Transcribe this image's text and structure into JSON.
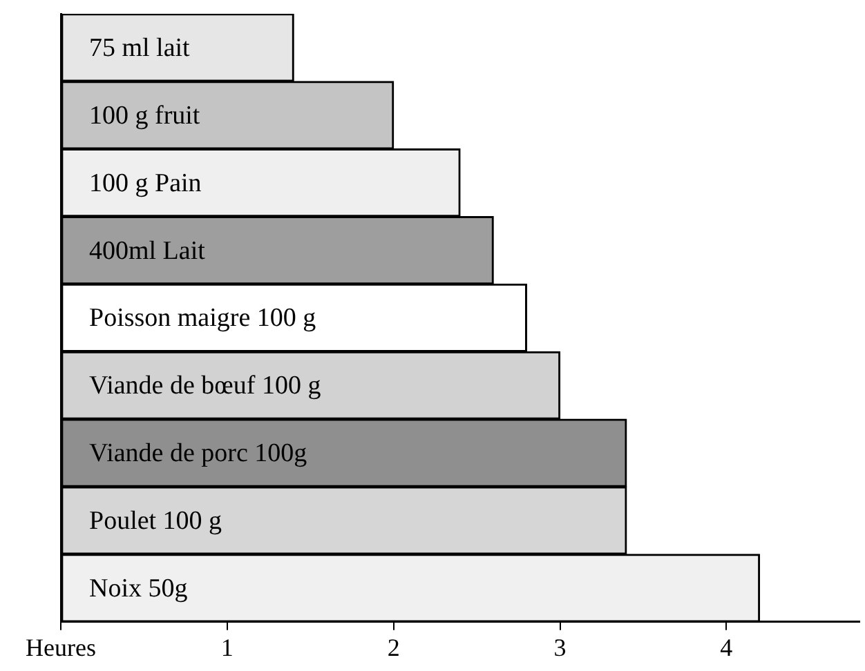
{
  "chart_data": {
    "type": "bar",
    "orientation": "horizontal",
    "categories": [
      "75 ml lait",
      "100 g fruit",
      "100 g Pain",
      "400ml Lait",
      "Poisson maigre 100 g",
      "Viande de bœuf 100 g",
      "Viande de porc 100g",
      "Poulet 100 g",
      "Noix 50g"
    ],
    "values": [
      1.4,
      2,
      2.4,
      2.6,
      2.8,
      3,
      3.4,
      3.4,
      4.2
    ],
    "colors": [
      "#e6e6e6",
      "#c4c4c4",
      "#efefef",
      "#9e9e9e",
      "#ffffff",
      "#d2d2d2",
      "#8f8f8f",
      "#d6d6d6",
      "#f0f0f0"
    ],
    "xlim": [
      0,
      4.8
    ],
    "xticks": [
      {
        "value": 0,
        "label": "Heures"
      },
      1,
      2,
      3,
      4
    ],
    "grid": false,
    "legend": false
  }
}
